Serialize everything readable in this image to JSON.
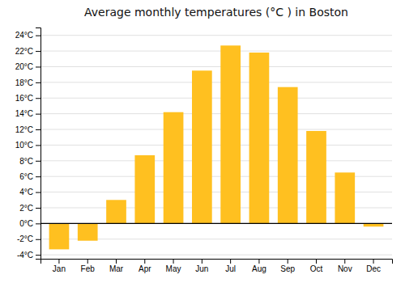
{
  "chart_data": {
    "type": "bar",
    "title": "Average monthly temperatures (°C ) in Boston",
    "categories": [
      "Jan",
      "Feb",
      "Mar",
      "Apr",
      "May",
      "Jun",
      "Jul",
      "Aug",
      "Sep",
      "Oct",
      "Nov",
      "Dec"
    ],
    "values": [
      -3.3,
      -2.2,
      3.0,
      8.7,
      14.2,
      19.5,
      22.7,
      21.8,
      17.4,
      11.8,
      6.5,
      -0.4
    ],
    "color": "#FFC020",
    "ylim": [
      -4.5,
      25
    ],
    "yticks": [
      {
        "value": -4,
        "label": "-4°C"
      },
      {
        "value": -2,
        "label": "-2°C"
      },
      {
        "value": 0,
        "label": "0°C"
      },
      {
        "value": 2,
        "label": "2°C"
      },
      {
        "value": 4,
        "label": "4°C"
      },
      {
        "value": 6,
        "label": "6°C"
      },
      {
        "value": 8,
        "label": "8°C"
      },
      {
        "value": 10,
        "label": "10°C"
      },
      {
        "value": 12,
        "label": "12°C"
      },
      {
        "value": 14,
        "label": "14°C"
      },
      {
        "value": 16,
        "label": "16°C"
      },
      {
        "value": 18,
        "label": "18°C"
      },
      {
        "value": 20,
        "label": "20°C"
      },
      {
        "value": 22,
        "label": "22°C"
      },
      {
        "value": 24,
        "label": "24°C"
      }
    ],
    "grid": true
  }
}
